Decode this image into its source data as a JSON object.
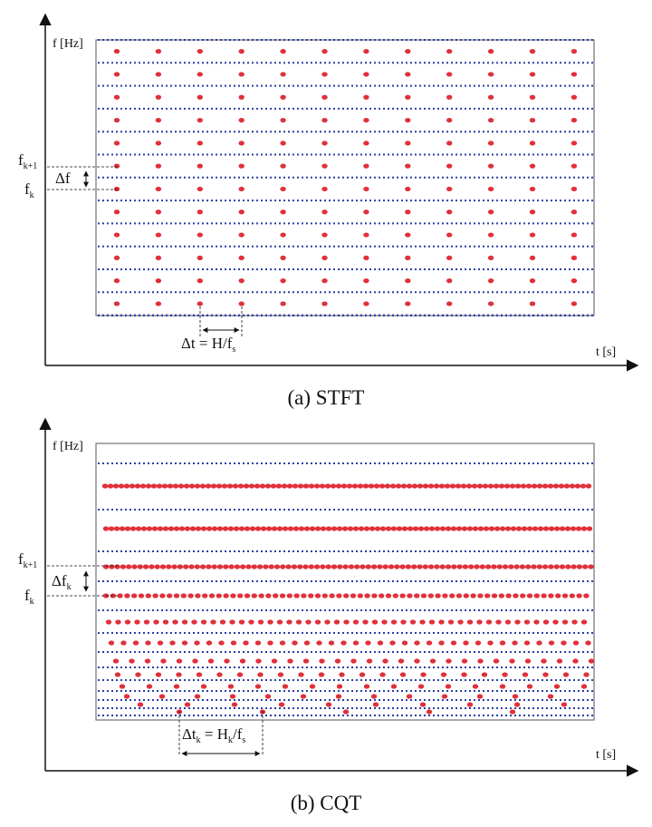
{
  "panel_a": {
    "y_axis_label": "f [Hz]",
    "x_axis_label": "t [s]",
    "caption": "(a) STFT",
    "label_fk1": {
      "base": "f",
      "sub": "k+1"
    },
    "label_fk": {
      "base": "f",
      "sub": "k"
    },
    "label_df": {
      "text": "Δf",
      "sub": ""
    },
    "label_dt": {
      "pre": "Δt = H/f",
      "sub": "s",
      "sub1": ""
    },
    "time_columns": 12,
    "frequency_bins": 13
  },
  "panel_b": {
    "y_axis_label": "f [Hz]",
    "x_axis_label": "t [s]",
    "caption": "(b) CQT",
    "label_fk1": {
      "base": "f",
      "sub": "k+1"
    },
    "label_fk": {
      "base": "f",
      "sub": "k"
    },
    "label_df": {
      "text": "Δf",
      "sub": "k"
    },
    "label_dt": {
      "pre": "Δt",
      "sub": "k",
      "mid": " = H",
      "sub2": "k",
      "post": "/f",
      "sub3": "s"
    },
    "hop_pattern": "hop size H_k increases as frequency decreases"
  },
  "colors": {
    "axis": "#111111",
    "grid_dotted": "#2b3fa8",
    "tf_point": "#e0303a",
    "box": "#555555"
  }
}
